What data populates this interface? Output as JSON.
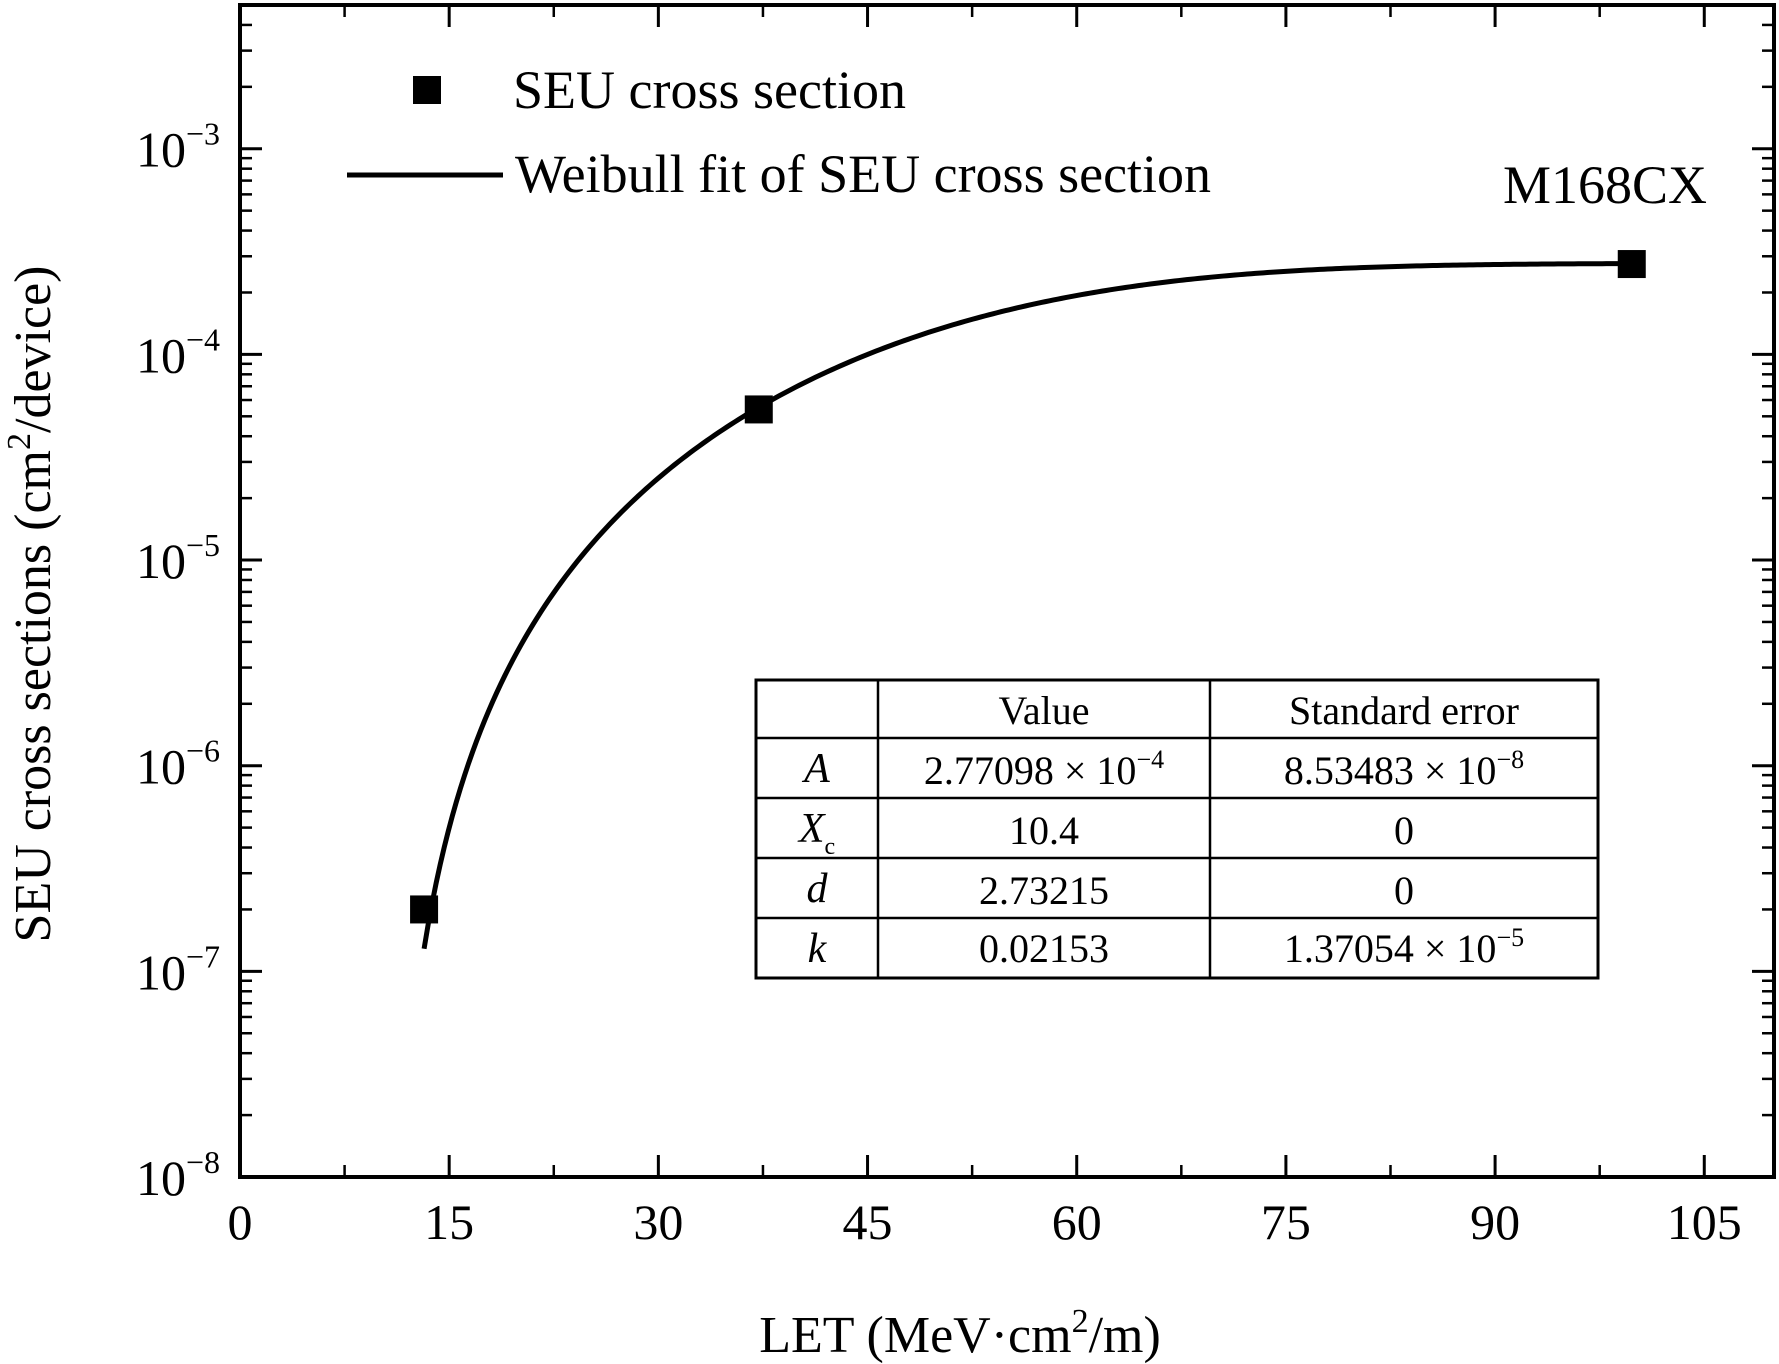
{
  "chart_data": {
    "type": "scatter",
    "xlabel": "LET (MeV·cm²/m)",
    "ylabel": "SEU cross sections (cm²/device)",
    "xlim": [
      0,
      110
    ],
    "ylim": [
      1e-08,
      0.005
    ],
    "y_scale": "log",
    "x_ticks": [
      0,
      15,
      30,
      45,
      60,
      75,
      90,
      105
    ],
    "y_ticks": [
      {
        "value": 1e-08,
        "label": "10",
        "exp": "−8"
      },
      {
        "value": 1e-07,
        "label": "10",
        "exp": "−7"
      },
      {
        "value": 1e-06,
        "label": "10",
        "exp": "−6"
      },
      {
        "value": 1e-05,
        "label": "10",
        "exp": "−5"
      },
      {
        "value": 0.0001,
        "label": "10",
        "exp": "−4"
      },
      {
        "value": 0.001,
        "label": "10",
        "exp": "−3"
      }
    ],
    "series": [
      {
        "name": "SEU cross section",
        "kind": "points",
        "marker": "square",
        "x": [
          13.2,
          37.2,
          99.8
        ],
        "y": [
          2e-07,
          5.4e-05,
          0.000275
        ]
      },
      {
        "name": "Weibull fit of SEU cross section",
        "kind": "line",
        "x_range": [
          13.2,
          100
        ]
      }
    ],
    "annotation": "M168CX",
    "legend_position": "top-left",
    "grid": false,
    "fit_table": {
      "headers": [
        "",
        "Value",
        "Standard error"
      ],
      "rows": [
        {
          "param": "A",
          "sub": "",
          "value": "2.77098 × 10",
          "value_exp": "−4",
          "error": "8.53483 × 10",
          "error_exp": "−8"
        },
        {
          "param": "X",
          "sub": "c",
          "value": "10.4",
          "value_exp": "",
          "error": "0",
          "error_exp": ""
        },
        {
          "param": "d",
          "sub": "",
          "value": "2.73215",
          "value_exp": "",
          "error": "0",
          "error_exp": ""
        },
        {
          "param": "k",
          "sub": "",
          "value": "0.02153",
          "value_exp": "",
          "error": "1.37054 × 10",
          "error_exp": "−5"
        }
      ],
      "fit_params": {
        "A": 0.000277098,
        "Xc": 10.4,
        "d": 2.73215,
        "k": 0.02153
      }
    }
  }
}
